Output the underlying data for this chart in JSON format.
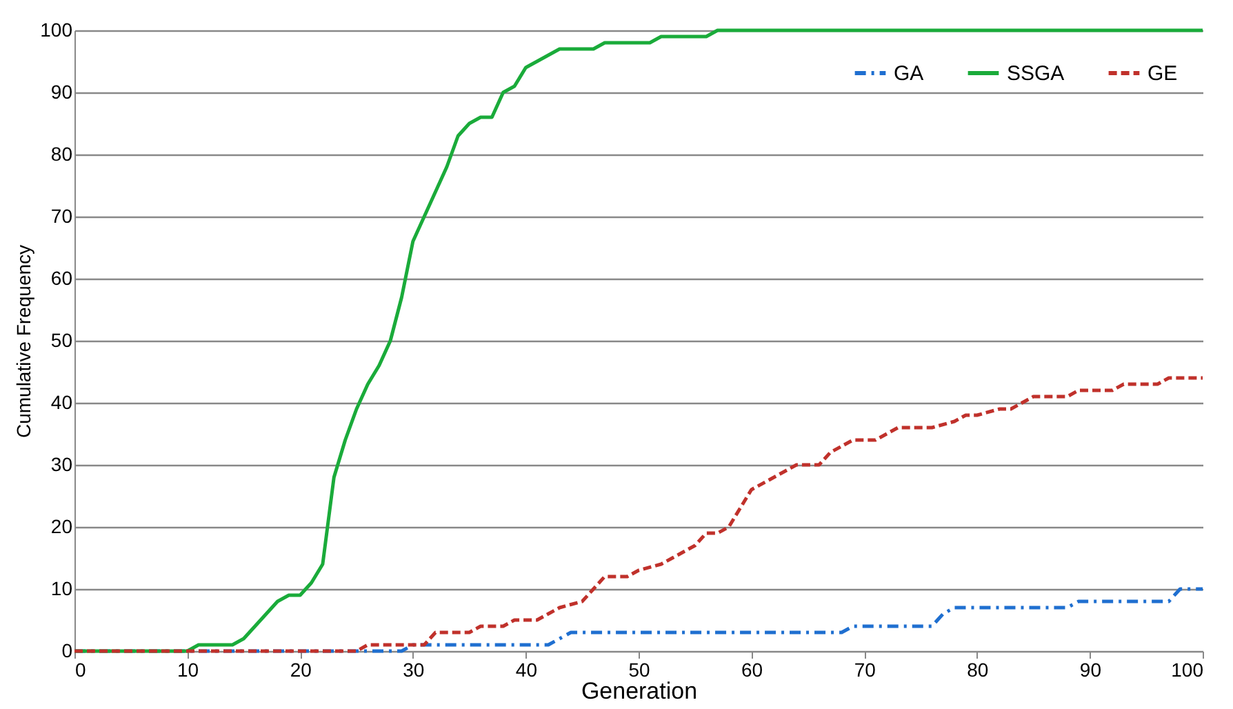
{
  "chart_data": {
    "type": "line",
    "xlabel": "Generation",
    "ylabel": "Cumulative Frequency",
    "xlim": [
      0,
      100
    ],
    "xticks": [
      0,
      10,
      20,
      30,
      40,
      50,
      60,
      70,
      80,
      90,
      100
    ],
    "ylim": [
      0,
      100
    ],
    "yticks": [
      0,
      10,
      20,
      30,
      40,
      50,
      60,
      70,
      80,
      90,
      100
    ],
    "grid": "y",
    "legend": "top right",
    "marker": "none",
    "series": [
      {
        "name": "GA",
        "color": "#1f6fd0",
        "line_style": "dashdot",
        "x": [
          0,
          29,
          30,
          42,
          43,
          44,
          68,
          69,
          76,
          77,
          78,
          80,
          88,
          89,
          97,
          98,
          100
        ],
        "values": [
          0,
          0,
          1,
          1,
          2,
          3,
          3,
          4,
          4,
          6,
          7,
          7,
          7,
          8,
          8,
          10,
          10
        ]
      },
      {
        "name": "SSGA",
        "color": "#1aab3a",
        "line_style": "solid",
        "x": [
          0,
          10,
          11,
          14,
          15,
          17,
          18,
          19,
          20,
          21,
          22,
          23,
          24,
          25,
          26,
          27,
          28,
          29,
          30,
          31,
          32,
          33,
          34,
          35,
          36,
          37,
          38,
          39,
          40,
          41,
          42,
          43,
          46,
          47,
          51,
          52,
          56,
          57,
          100
        ],
        "values": [
          0,
          0,
          1,
          1,
          2,
          6,
          8,
          9,
          9,
          11,
          14,
          28,
          34,
          39,
          43,
          46,
          50,
          57,
          66,
          70,
          74,
          78,
          83,
          85,
          86,
          86,
          90,
          91,
          94,
          95,
          96,
          97,
          97,
          98,
          98,
          99,
          99,
          100,
          100
        ]
      },
      {
        "name": "GE",
        "color": "#c0312b",
        "line_style": "dashed",
        "x": [
          0,
          25,
          26,
          31,
          32,
          35,
          36,
          38,
          39,
          41,
          42,
          43,
          45,
          46,
          47,
          49,
          50,
          52,
          53,
          54,
          55,
          56,
          57,
          58,
          59,
          60,
          62,
          63,
          64,
          66,
          67,
          68,
          69,
          71,
          72,
          73,
          76,
          78,
          79,
          80,
          82,
          83,
          84,
          85,
          88,
          89,
          92,
          93,
          96,
          97,
          100
        ],
        "values": [
          0,
          0,
          1,
          1,
          3,
          3,
          4,
          4,
          5,
          5,
          6,
          7,
          8,
          10,
          12,
          12,
          13,
          14,
          15,
          16,
          17,
          19,
          19,
          20,
          23,
          26,
          28,
          29,
          30,
          30,
          32,
          33,
          34,
          34,
          35,
          36,
          36,
          37,
          38,
          38,
          39,
          39,
          40,
          41,
          41,
          42,
          42,
          43,
          43,
          44,
          44
        ]
      }
    ]
  }
}
